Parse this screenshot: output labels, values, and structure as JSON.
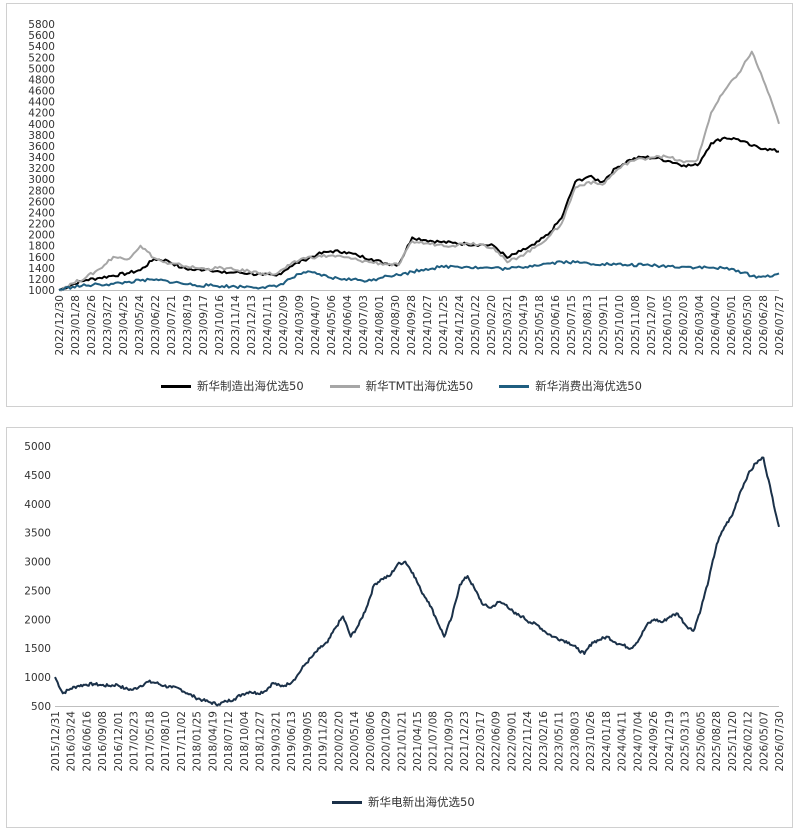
{
  "chart_data": [
    {
      "type": "line",
      "ylim": [
        1000,
        5800
      ],
      "yticks": [
        1000,
        1200,
        1400,
        1600,
        1800,
        2000,
        2200,
        2400,
        2600,
        2800,
        3000,
        3200,
        3400,
        3600,
        3800,
        4000,
        4200,
        4400,
        4600,
        4800,
        5000,
        5200,
        5400,
        5600,
        5800
      ],
      "xticks": [
        "2022/12/30",
        "2023/01/28",
        "2023/02/26",
        "2023/03/27",
        "2023/04/25",
        "2023/05/24",
        "2023/06/22",
        "2023/07/21",
        "2023/08/19",
        "2023/09/17",
        "2023/10/16",
        "2023/11/14",
        "2023/12/13",
        "2024/01/11",
        "2024/02/09",
        "2024/03/09",
        "2024/04/07",
        "2024/05/06",
        "2024/06/04",
        "2024/07/03",
        "2024/08/01",
        "2024/08/30",
        "2024/09/28",
        "2024/10/27",
        "2024/11/25",
        "2024/12/24",
        "2025/01/22",
        "2025/02/20",
        "2025/03/21",
        "2025/04/19",
        "2025/05/18",
        "2025/06/16",
        "2025/07/15",
        "2025/08/13",
        "2025/09/11",
        "2025/10/10",
        "2025/11/08",
        "2025/12/07",
        "2026/01/05",
        "2026/02/03",
        "2026/03/04",
        "2026/04/02",
        "2026/05/01",
        "2026/05/30",
        "2026/06/28",
        "2026/07/27"
      ],
      "legend_position": "bottom",
      "series": [
        {
          "name": "新华制造出海优选50",
          "color": "#000000",
          "values": [
            1000,
            1100,
            1180,
            1220,
            1260,
            1300,
            1360,
            1560,
            1530,
            1400,
            1360,
            1380,
            1310,
            1320,
            1300,
            1270,
            1260,
            1420,
            1540,
            1640,
            1700,
            1690,
            1620,
            1560,
            1480,
            1460,
            1950,
            1900,
            1870,
            1850,
            1830,
            1820,
            1800,
            1580,
            1700,
            1820,
            2000,
            2300,
            2950,
            3050,
            2950,
            3200,
            3350,
            3400,
            3380,
            3320,
            3250,
            3250,
            3650,
            3750,
            3720,
            3600,
            3550,
            3500
          ]
        },
        {
          "name": "新华TMT出海优选50",
          "color": "#a6a6a6",
          "values": [
            1000,
            1120,
            1230,
            1380,
            1600,
            1550,
            1800,
            1580,
            1470,
            1450,
            1400,
            1380,
            1400,
            1360,
            1340,
            1300,
            1290,
            1450,
            1580,
            1600,
            1620,
            1590,
            1540,
            1500,
            1470,
            1450,
            1880,
            1840,
            1820,
            1800,
            1850,
            1830,
            1760,
            1500,
            1620,
            1760,
            1950,
            2200,
            2850,
            2950,
            2900,
            3150,
            3320,
            3370,
            3420,
            3390,
            3300,
            3350,
            4200,
            4600,
            4900,
            5300,
            4700,
            4000
          ]
        },
        {
          "name": "新华消费出海优选50",
          "color": "#1f5e80",
          "values": [
            1000,
            1060,
            1080,
            1100,
            1110,
            1140,
            1170,
            1180,
            1160,
            1120,
            1090,
            1080,
            1070,
            1060,
            1060,
            1050,
            1060,
            1200,
            1320,
            1290,
            1220,
            1200,
            1180,
            1170,
            1260,
            1270,
            1330,
            1380,
            1410,
            1430,
            1420,
            1400,
            1400,
            1380,
            1410,
            1450,
            1480,
            1510,
            1500,
            1480,
            1470,
            1460,
            1450,
            1450,
            1440,
            1430,
            1420,
            1410,
            1400,
            1390,
            1350,
            1250,
            1240,
            1300
          ]
        }
      ]
    },
    {
      "type": "line",
      "ylim": [
        500,
        5000
      ],
      "yticks": [
        500,
        1000,
        1500,
        2000,
        2500,
        3000,
        3500,
        4000,
        4500,
        5000
      ],
      "xticks": [
        "2015/12/31",
        "2016/03/24",
        "2016/06/16",
        "2016/09/08",
        "2016/12/01",
        "2017/02/23",
        "2017/05/18",
        "2017/08/10",
        "2017/11/02",
        "2018/01/25",
        "2018/04/19",
        "2018/07/12",
        "2018/10/04",
        "2018/12/27",
        "2019/03/21",
        "2019/06/13",
        "2019/09/05",
        "2019/11/28",
        "2020/02/20",
        "2020/05/14",
        "2020/08/06",
        "2020/10/29",
        "2021/01/21",
        "2021/04/15",
        "2021/07/08",
        "2021/09/30",
        "2021/12/23",
        "2022/03/17",
        "2022/06/09",
        "2022/09/01",
        "2022/11/24",
        "2023/02/16",
        "2023/05/11",
        "2023/08/03",
        "2023/10/26",
        "2024/01/18",
        "2024/04/11",
        "2024/07/04",
        "2024/09/26",
        "2024/12/19",
        "2025/03/13",
        "2025/06/05",
        "2025/08/28",
        "2025/11/20",
        "2026/02/12",
        "2026/05/07",
        "2026/07/30"
      ],
      "legend_position": "bottom",
      "series": [
        {
          "name": "新华电新出海优选50",
          "color": "#1b3149",
          "values": [
            1000,
            720,
            800,
            850,
            870,
            880,
            860,
            850,
            870,
            800,
            780,
            850,
            920,
            900,
            850,
            820,
            800,
            720,
            650,
            600,
            560,
            530,
            580,
            620,
            700,
            750,
            720,
            760,
            900,
            840,
            880,
            1000,
            1200,
            1350,
            1500,
            1600,
            1850,
            2050,
            1700,
            1900,
            2200,
            2600,
            2700,
            2750,
            2950,
            3000,
            2800,
            2500,
            2300,
            2000,
            1700,
            2050,
            2600,
            2750,
            2500,
            2250,
            2200,
            2300,
            2250,
            2100,
            2050,
            1950,
            1900,
            1780,
            1700,
            1650,
            1600,
            1500,
            1400,
            1600,
            1650,
            1700,
            1600,
            1550,
            1500,
            1650,
            1900,
            2000,
            1950,
            2050,
            2100,
            1900,
            1800,
            2200,
            2700,
            3300,
            3600,
            3800,
            4200,
            4500,
            4700,
            4800,
            4200,
            3600
          ]
        }
      ]
    }
  ]
}
